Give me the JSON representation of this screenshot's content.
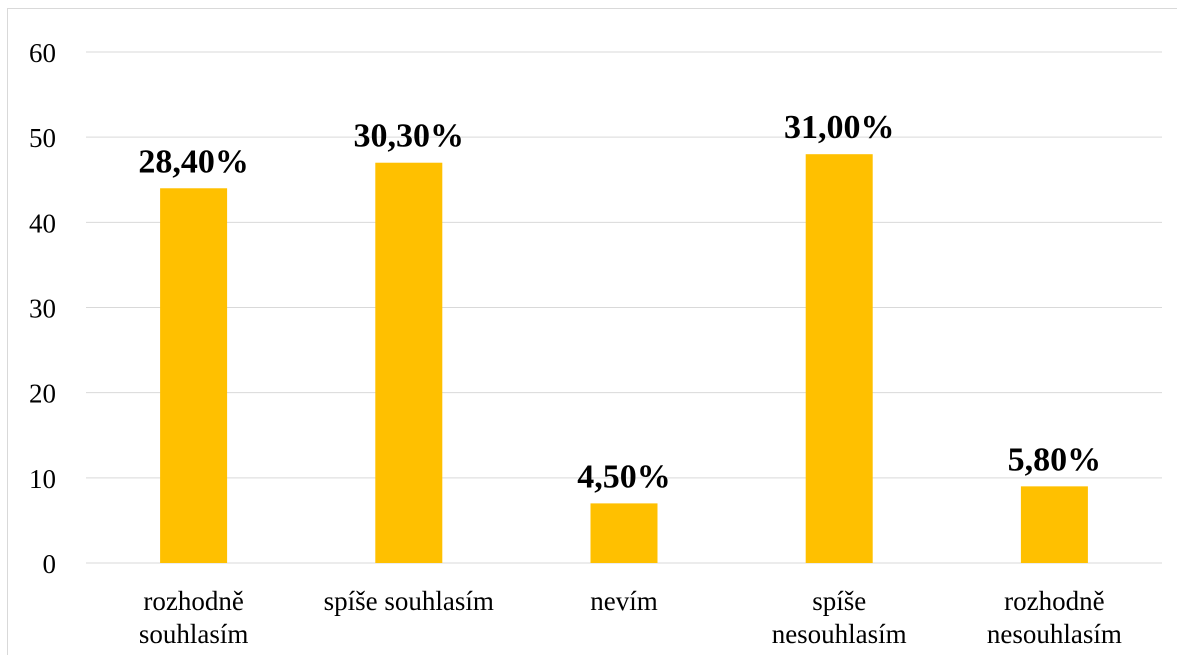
{
  "chart_data": {
    "type": "bar",
    "categories": [
      [
        "rozhodně",
        "souhlasím"
      ],
      [
        "spíše souhlasím"
      ],
      [
        "nevím"
      ],
      [
        "spíše",
        "nesouhlasím"
      ],
      [
        "rozhodně",
        "nesouhlasím"
      ]
    ],
    "values": [
      44,
      47,
      7,
      48,
      9
    ],
    "data_labels": [
      "28,40%",
      "30,30%",
      "4,50%",
      "31,00%",
      "5,80%"
    ],
    "y_ticks": [
      "0",
      "10",
      "20",
      "30",
      "40",
      "50",
      "60"
    ],
    "ylim": [
      0,
      60
    ],
    "grid": true,
    "colors": {
      "bar": "#ffc000",
      "grid": "#d9d9d9",
      "text": "#000000"
    }
  }
}
